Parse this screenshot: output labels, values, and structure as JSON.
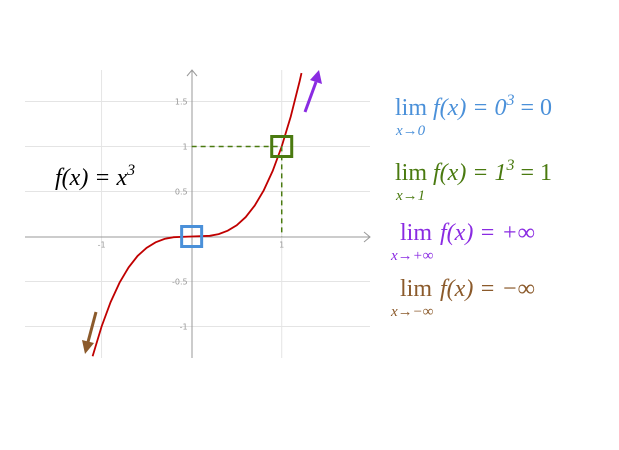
{
  "chart_data": {
    "type": "line",
    "xlim": [
      -1.85,
      1.98
    ],
    "ylim": [
      -1.35,
      1.85
    ],
    "xticks": [
      -1,
      1
    ],
    "yticks": [
      -1,
      -0.5,
      0.5,
      1,
      1.5
    ],
    "grid": true,
    "series": [
      {
        "color": "#c00000",
        "x": [
          -1.1,
          -1,
          -0.9,
          -0.8,
          -0.7,
          -0.6,
          -0.5,
          -0.4,
          -0.3,
          -0.2,
          0,
          0.2,
          0.3,
          0.4,
          0.5,
          0.6,
          0.7,
          0.8,
          0.9,
          1,
          1.1,
          1.2,
          1.22
        ],
        "values": [
          -1.331,
          -1,
          -0.729,
          -0.512,
          -0.343,
          -0.216,
          -0.125,
          -0.064,
          -0.027,
          -0.008,
          0,
          0.008,
          0.027,
          0.064,
          0.125,
          0.216,
          0.343,
          0.512,
          0.729,
          1,
          1.331,
          1.728,
          1.816
        ]
      }
    ],
    "highlights": [
      {
        "x": 0,
        "y": 0,
        "color": "#4a90d9"
      },
      {
        "x": 1,
        "y": 1,
        "color": "#4a7a10",
        "dashed": true
      }
    ],
    "function_label": {
      "main": "f(x) = x",
      "sup": "3"
    },
    "formulas": [
      {
        "color": "#4a90d9",
        "lim": "lim",
        "sub": "x→0",
        "main": "f(x) = 0",
        "sup": "3",
        "tail": "  = 0"
      },
      {
        "color": "#4a7a10",
        "lim": "lim",
        "sub": "x→1",
        "main": "f(x) = 1",
        "sup": "3",
        "tail": " = 1"
      },
      {
        "color": "#8a2be2",
        "lim": "lim",
        "sub": "x→+∞",
        "main": " f(x) = +∞"
      },
      {
        "color": "#8b5a2b",
        "lim": "lim",
        "sub": "x→−∞",
        "main": " f(x) = −∞"
      }
    ]
  }
}
